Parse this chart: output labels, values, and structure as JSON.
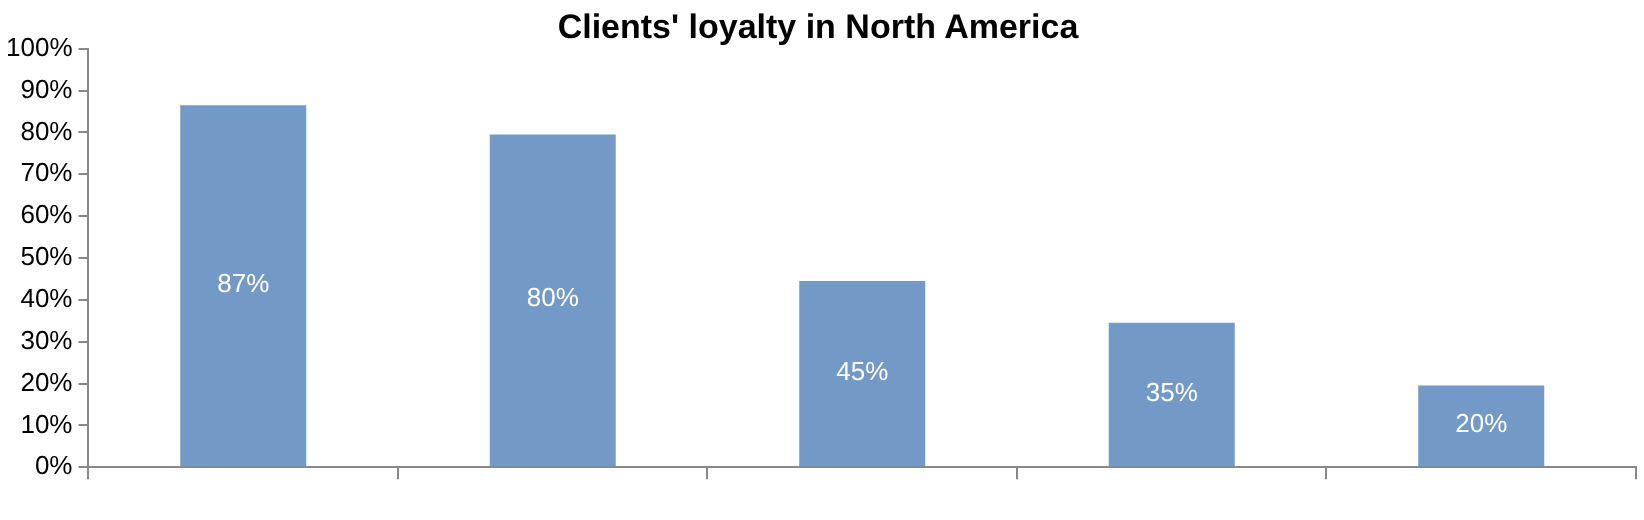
{
  "chart_data": {
    "type": "bar",
    "title": "Clients' loyalty in North America",
    "categories": [
      null,
      null,
      null,
      null,
      null
    ],
    "values": [
      87,
      80,
      45,
      35,
      20
    ],
    "color": "#7399c6",
    "value_labels": [
      "87%",
      "80%",
      "45%",
      "35%",
      "20%"
    ],
    "ylim": [
      0,
      100
    ],
    "yticks": [
      {
        "value": 0,
        "label": "0%"
      },
      {
        "value": 10,
        "label": "10%"
      },
      {
        "value": 20,
        "label": "20%"
      },
      {
        "value": 30,
        "label": "30%"
      },
      {
        "value": 40,
        "label": "40%"
      },
      {
        "value": 50,
        "label": "50%"
      },
      {
        "value": 60,
        "label": "60%"
      },
      {
        "value": 70,
        "label": "70%"
      },
      {
        "value": 80,
        "label": "80%"
      },
      {
        "value": 90,
        "label": "90%"
      },
      {
        "value": 100,
        "label": "100%"
      }
    ],
    "grid": false
  }
}
